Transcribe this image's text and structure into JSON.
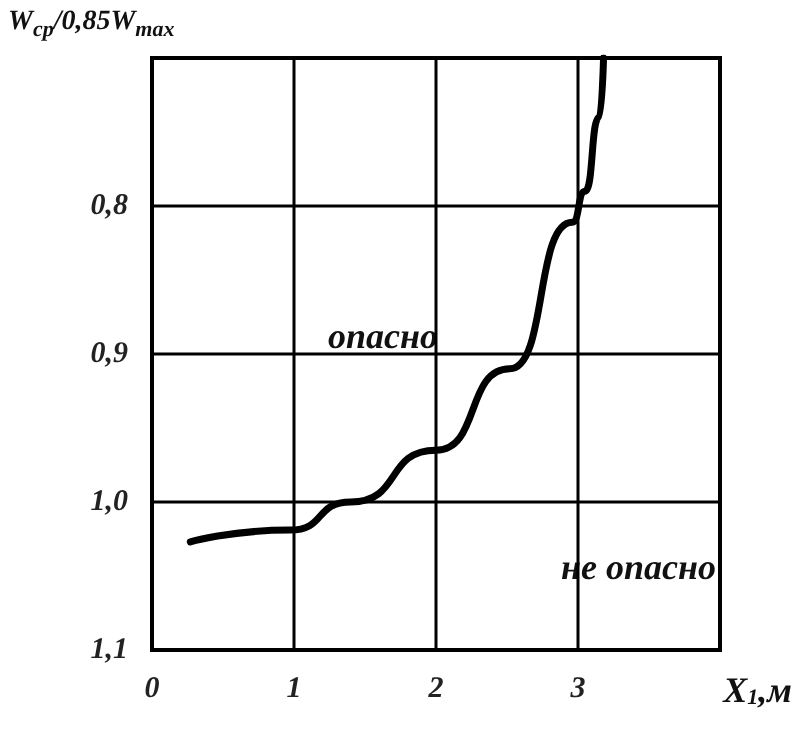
{
  "chart_data": {
    "type": "line",
    "ylabel": "W$_{ср}$/0,85W$_{max}$",
    "xlabel": "X$_{1}$,м",
    "annotations": [
      "опасно",
      "не опасно"
    ],
    "x": [
      0.27,
      0.97,
      1.4,
      2.0,
      2.52,
      2.96,
      3.05,
      3.15,
      3.18
    ],
    "series": [
      {
        "color": "#000000",
        "values": [
          1.027,
          1.019,
          1.0,
          0.965,
          0.91,
          0.811,
          0.79,
          0.74,
          0.7
        ]
      }
    ],
    "xlim": [
      0,
      4
    ],
    "xticks": [
      0,
      1,
      2,
      3,
      {
        "value": 4,
        "label": null
      }
    ],
    "ylim": [
      1.1,
      0.7
    ],
    "yticks": [
      {
        "value": 0.7,
        "label": null
      },
      {
        "value": 0.8,
        "label": "0,8"
      },
      {
        "value": 0.9,
        "label": "0,9"
      },
      {
        "value": 1.0,
        "label": "1,0"
      },
      {
        "value": 1.1,
        "label": "1,1"
      }
    ],
    "grid": true,
    "marker": "none",
    "line_style": "solid"
  }
}
